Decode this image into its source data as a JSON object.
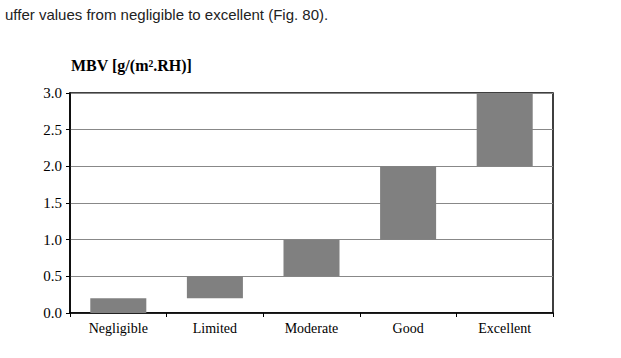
{
  "chart_data": {
    "type": "floating_bar",
    "annotations": [
      "uffer values from negligible to excellent (Fig. 80)."
    ],
    "ylabel": "MBV [g/(m².RH)]",
    "categories": [
      "Negligible",
      "Limited",
      "Moderate",
      "Good",
      "Excellent"
    ],
    "values": [
      [
        0,
        0.2
      ],
      [
        0.2,
        0.5
      ],
      [
        0.5,
        1.0
      ],
      [
        1.0,
        2.0
      ],
      [
        2.0,
        3.0
      ]
    ],
    "color": "#808080",
    "ylim": [
      0,
      3
    ],
    "yticks": [
      {
        "value": 0,
        "label": "0.0"
      },
      {
        "value": 0.5,
        "label": "0.5"
      },
      {
        "value": 1,
        "label": "1.0"
      },
      {
        "value": 1.5,
        "label": "1.5"
      },
      {
        "value": 2,
        "label": "2.0"
      },
      {
        "value": 2.5,
        "label": "2.5"
      },
      {
        "value": 3,
        "label": "3.0"
      }
    ],
    "grid": true
  }
}
